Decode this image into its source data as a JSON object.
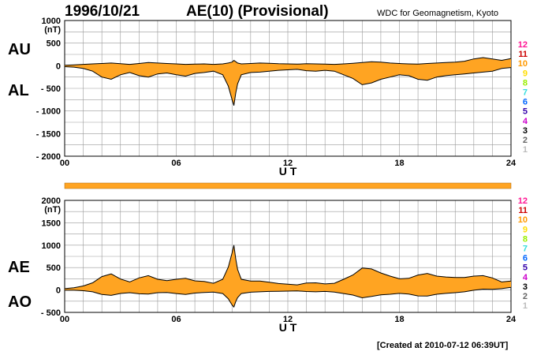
{
  "header": {
    "date": "1996/10/21",
    "title": "AE(10) (Provisional)",
    "source": "WDC for Geomagnetism, Kyoto"
  },
  "footer": "[Created at 2010-07-12 06:39UT]",
  "legend": {
    "labels": [
      "12",
      "11",
      "10",
      "9",
      "8",
      "7",
      "6",
      "5",
      "4",
      "3",
      "2",
      "1"
    ],
    "colors": [
      "#ff1493",
      "#cc0000",
      "#ff9900",
      "#ffdd00",
      "#99ee00",
      "#33dddd",
      "#0066ff",
      "#3300aa",
      "#cc00cc",
      "#000000",
      "#666666",
      "#bbbbbb"
    ]
  },
  "colors": {
    "fill": "#ffa422",
    "line": "#000000",
    "grid": "#999999"
  },
  "chart_data": [
    {
      "type": "area",
      "panel_labels": [
        "AU",
        "AL"
      ],
      "unit": "(nT)",
      "xlabel": "U T",
      "xlim": [
        0,
        24
      ],
      "xticks": [
        "00",
        "06",
        "12",
        "18",
        "24"
      ],
      "ylim": [
        -2000,
        1000
      ],
      "yticks": [
        1000,
        500,
        0,
        -500,
        -1000,
        -1500,
        -2000
      ],
      "ytick_labels": [
        "1000",
        "500",
        "0",
        "- 500",
        "- 1000",
        "- 1500",
        "- 2000"
      ],
      "series": [
        {
          "x": [
            0,
            0.5,
            1,
            1.5,
            2,
            2.5,
            3,
            3.5,
            4,
            4.5,
            5,
            5.5,
            6,
            6.5,
            7,
            7.5,
            8,
            8.5,
            8.8,
            9,
            9.1,
            9.2,
            9.3,
            9.5,
            10,
            10.5,
            11,
            11.5,
            12,
            12.5,
            13,
            13.5,
            14,
            14.5,
            15,
            15.5,
            16,
            16.5,
            17,
            17.5,
            18,
            18.5,
            19,
            19.5,
            20,
            20.5,
            21,
            21.5,
            22,
            22.5,
            23,
            23.5,
            24
          ],
          "y": [
            10,
            20,
            30,
            40,
            50,
            60,
            45,
            30,
            50,
            70,
            60,
            50,
            40,
            30,
            35,
            40,
            30,
            40,
            60,
            80,
            120,
            90,
            60,
            40,
            50,
            60,
            55,
            45,
            40,
            35,
            45,
            40,
            35,
            30,
            40,
            55,
            70,
            90,
            80,
            60,
            50,
            40,
            35,
            50,
            60,
            70,
            80,
            100,
            150,
            180,
            150,
            120,
            160
          ]
        },
        {
          "x": [
            0,
            0.5,
            1,
            1.5,
            2,
            2.5,
            3,
            3.5,
            4,
            4.5,
            5,
            5.5,
            6,
            6.5,
            7,
            7.5,
            8,
            8.5,
            8.8,
            9,
            9.1,
            9.2,
            9.3,
            9.5,
            10,
            10.5,
            11,
            11.5,
            12,
            12.5,
            13,
            13.5,
            14,
            14.5,
            15,
            15.5,
            16,
            16.5,
            17,
            17.5,
            18,
            18.5,
            19,
            19.5,
            20,
            20.5,
            21,
            21.5,
            22,
            22.5,
            23,
            23.5,
            24
          ],
          "y": [
            -20,
            -30,
            -60,
            -120,
            -250,
            -300,
            -200,
            -150,
            -220,
            -250,
            -180,
            -160,
            -200,
            -230,
            -170,
            -150,
            -120,
            -200,
            -450,
            -750,
            -880,
            -600,
            -400,
            -200,
            -150,
            -140,
            -120,
            -100,
            -90,
            -80,
            -110,
            -120,
            -100,
            -120,
            -200,
            -280,
            -420,
            -380,
            -300,
            -250,
            -200,
            -220,
            -300,
            -320,
            -250,
            -220,
            -200,
            -180,
            -160,
            -140,
            -120,
            -60,
            -40
          ]
        }
      ]
    },
    {
      "type": "area",
      "panel_labels": [
        "AE",
        "AO"
      ],
      "unit": "(nT)",
      "xlabel": "U T",
      "xlim": [
        0,
        24
      ],
      "xticks": [
        "00",
        "06",
        "12",
        "18",
        "24"
      ],
      "ylim": [
        -500,
        2000
      ],
      "yticks": [
        2000,
        1500,
        1000,
        500,
        0,
        -500
      ],
      "ytick_labels": [
        "2000",
        "1500",
        "1000",
        "500",
        "0",
        "- 500"
      ],
      "series": [
        {
          "x": [
            0,
            0.5,
            1,
            1.5,
            2,
            2.5,
            3,
            3.5,
            4,
            4.5,
            5,
            5.5,
            6,
            6.5,
            7,
            7.5,
            8,
            8.5,
            8.8,
            9,
            9.1,
            9.2,
            9.3,
            9.5,
            10,
            10.5,
            11,
            11.5,
            12,
            12.5,
            13,
            13.5,
            14,
            14.5,
            15,
            15.5,
            16,
            16.5,
            17,
            17.5,
            18,
            18.5,
            19,
            19.5,
            20,
            20.5,
            21,
            21.5,
            22,
            22.5,
            23,
            23.5,
            24
          ],
          "y": [
            30,
            50,
            90,
            160,
            300,
            360,
            245,
            180,
            270,
            320,
            240,
            210,
            240,
            260,
            205,
            190,
            150,
            240,
            510,
            830,
            1000,
            690,
            460,
            240,
            200,
            200,
            175,
            145,
            130,
            115,
            155,
            160,
            135,
            150,
            240,
            335,
            490,
            470,
            380,
            310,
            250,
            260,
            335,
            370,
            310,
            290,
            280,
            280,
            310,
            320,
            270,
            180,
            200
          ]
        },
        {
          "x": [
            0,
            0.5,
            1,
            1.5,
            2,
            2.5,
            3,
            3.5,
            4,
            4.5,
            5,
            5.5,
            6,
            6.5,
            7,
            7.5,
            8,
            8.5,
            8.8,
            9,
            9.1,
            9.2,
            9.3,
            9.5,
            10,
            10.5,
            11,
            11.5,
            12,
            12.5,
            13,
            13.5,
            14,
            14.5,
            15,
            15.5,
            16,
            16.5,
            17,
            17.5,
            18,
            18.5,
            19,
            19.5,
            20,
            20.5,
            21,
            21.5,
            22,
            22.5,
            23,
            23.5,
            24
          ],
          "y": [
            -5,
            -5,
            -15,
            -40,
            -100,
            -120,
            -78,
            -60,
            -85,
            -90,
            -60,
            -55,
            -80,
            -100,
            -68,
            -55,
            -45,
            -80,
            -195,
            -335,
            -380,
            -255,
            -170,
            -80,
            -50,
            -40,
            -32,
            -28,
            -25,
            -22,
            -33,
            -40,
            -32,
            -45,
            -80,
            -112,
            -175,
            -145,
            -110,
            -95,
            -75,
            -90,
            -132,
            -135,
            -95,
            -75,
            -60,
            -40,
            -5,
            20,
            15,
            30,
            60
          ]
        }
      ]
    }
  ]
}
